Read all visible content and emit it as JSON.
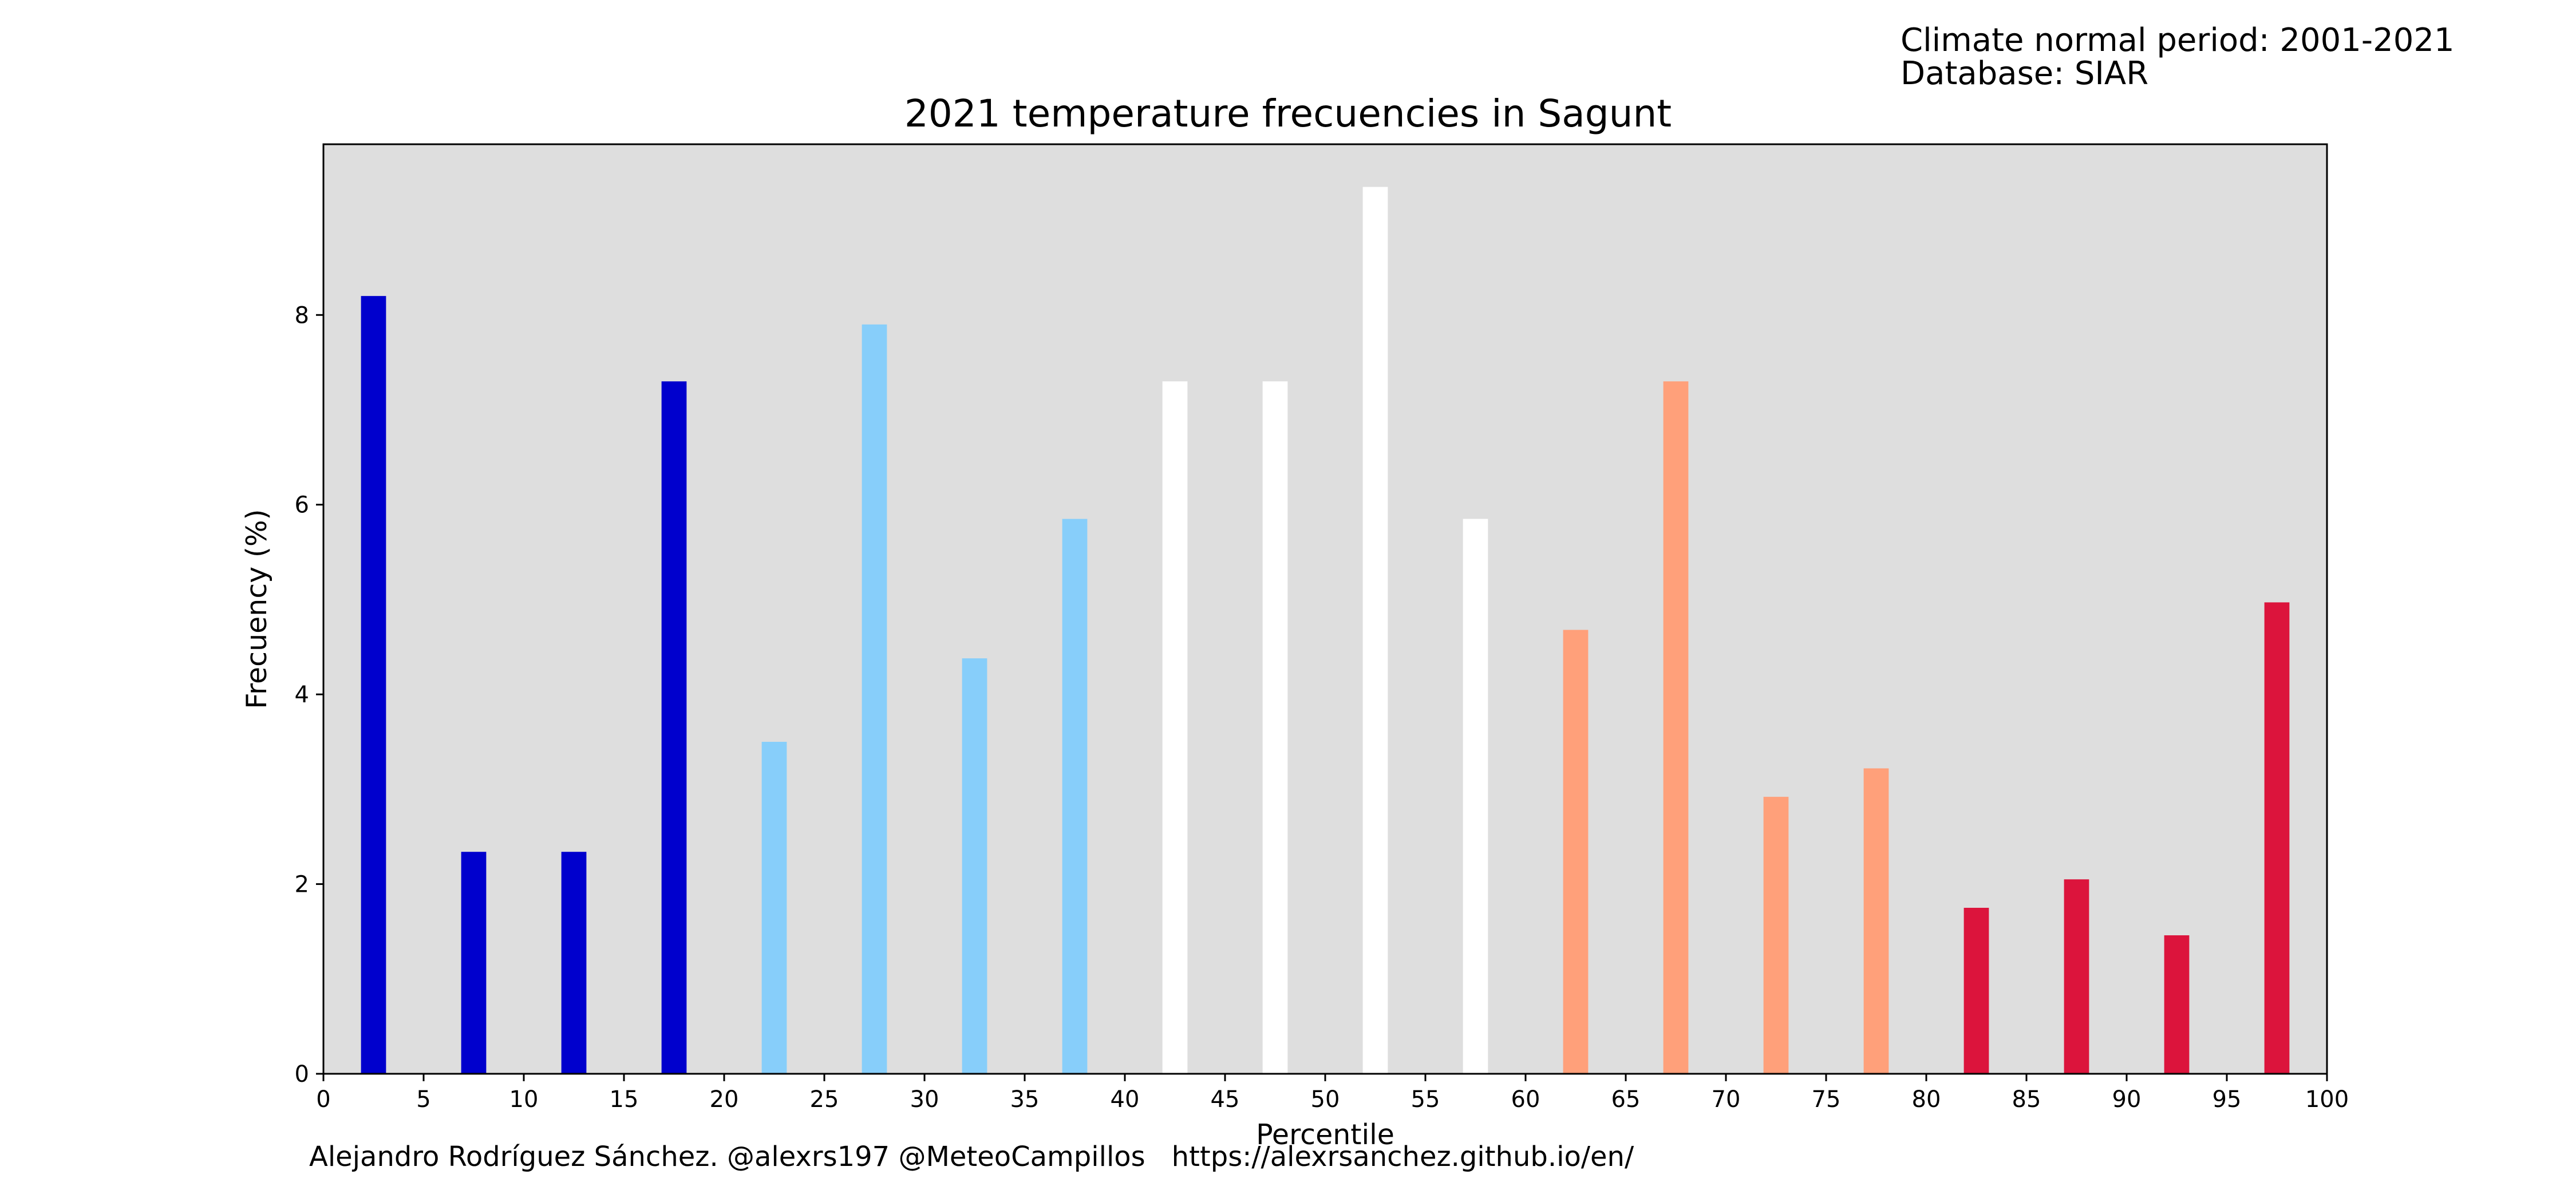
{
  "header": {
    "normal_period": "Climate normal period: 2001-2021",
    "database": "Database: SIAR"
  },
  "footer": {
    "author": "Alejandro Rodríguez Sánchez. @alexrs197 @MeteoCampillos",
    "url": "https://alexrsanchez.github.io/en/"
  },
  "colors": {
    "plot_background": "#dedede",
    "very_cold": "#0000cd",
    "cold": "#87cefa",
    "normal": "#ffffff",
    "warm": "#ffa07a",
    "very_warm": "#dc143c"
  },
  "chart_data": {
    "type": "bar",
    "title": "2021 temperature frecuencies in Sagunt",
    "xlabel": "Percentile",
    "ylabel": "Frecuency (%)",
    "xlim": [
      0,
      100
    ],
    "ylim": [
      0,
      9.8
    ],
    "xticks": [
      0,
      5,
      10,
      15,
      20,
      25,
      30,
      35,
      40,
      45,
      50,
      55,
      60,
      65,
      70,
      75,
      80,
      85,
      90,
      95,
      100
    ],
    "yticks": [
      0,
      2,
      4,
      6,
      8
    ],
    "grid": false,
    "legend": "none",
    "x": [
      2.5,
      7.5,
      12.5,
      17.5,
      22.5,
      27.5,
      32.5,
      37.5,
      42.5,
      47.5,
      52.5,
      57.5,
      62.5,
      67.5,
      72.5,
      77.5,
      82.5,
      87.5,
      92.5,
      97.5
    ],
    "values": [
      8.2,
      2.34,
      2.34,
      7.3,
      3.5,
      7.9,
      4.38,
      5.85,
      7.3,
      7.3,
      9.35,
      5.85,
      4.68,
      7.3,
      2.92,
      3.22,
      1.75,
      2.05,
      1.46,
      4.97
    ],
    "bar_colors": [
      "#0000cd",
      "#0000cd",
      "#0000cd",
      "#0000cd",
      "#87cefa",
      "#87cefa",
      "#87cefa",
      "#87cefa",
      "#ffffff",
      "#ffffff",
      "#ffffff",
      "#ffffff",
      "#ffa07a",
      "#ffa07a",
      "#ffa07a",
      "#ffa07a",
      "#dc143c",
      "#dc143c",
      "#dc143c",
      "#dc143c"
    ]
  }
}
